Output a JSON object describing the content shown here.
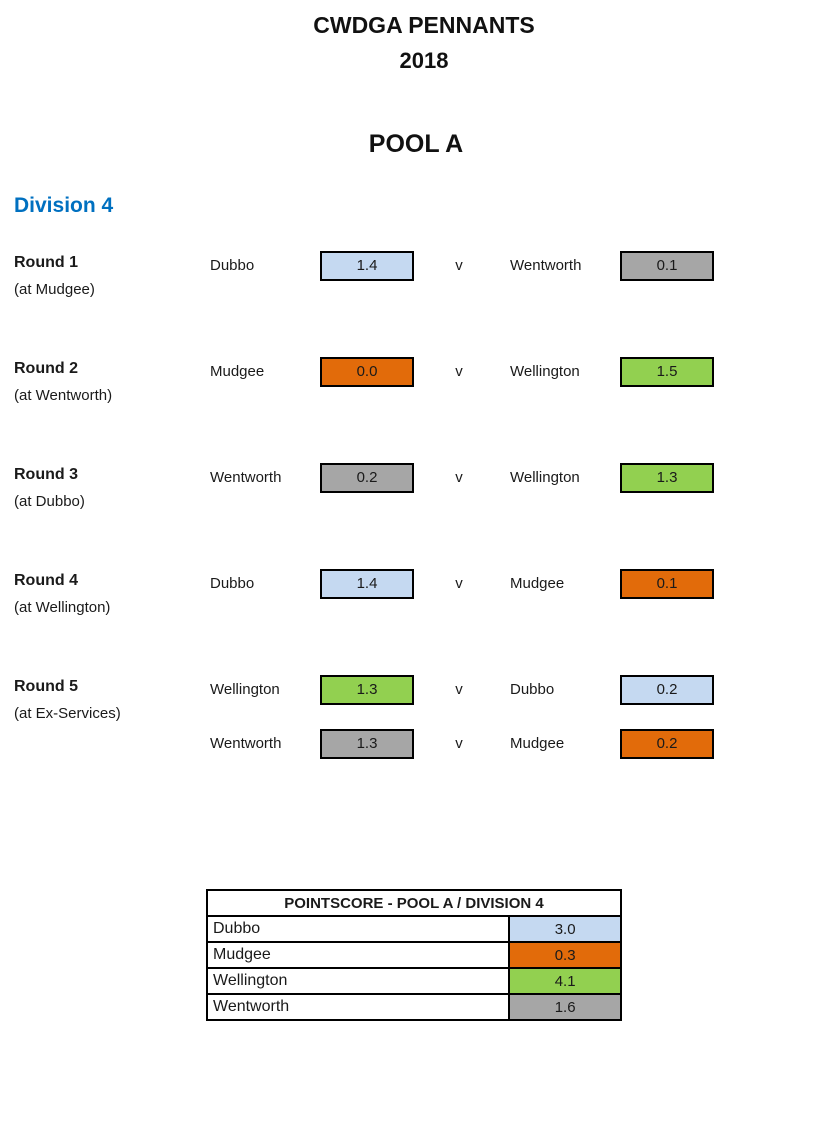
{
  "header": {
    "title_line1": "CWDGA PENNANTS",
    "title_line2": "2018",
    "pool_title": "POOL A"
  },
  "division": {
    "title": "Division 4"
  },
  "versus_label": "v",
  "colors": {
    "heading_blue": "#0070c0",
    "box_border": "#000000"
  },
  "team_colors": {
    "Dubbo": "#c5d9f1",
    "Mudgee": "#e26b0a",
    "Wellington": "#92d050",
    "Wentworth": "#a6a6a6"
  },
  "rounds": [
    {
      "label": "Round 1",
      "venue": "(at Mudgee)",
      "matches": [
        {
          "home": "Dubbo",
          "home_score": "1.4",
          "away": "Wentworth",
          "away_score": "0.1"
        }
      ]
    },
    {
      "label": "Round 2",
      "venue": "(at Wentworth)",
      "matches": [
        {
          "home": "Mudgee",
          "home_score": "0.0",
          "away": "Wellington",
          "away_score": "1.5"
        }
      ]
    },
    {
      "label": "Round 3",
      "venue": "(at Dubbo)",
      "matches": [
        {
          "home": "Wentworth",
          "home_score": "0.2",
          "away": "Wellington",
          "away_score": "1.3"
        }
      ]
    },
    {
      "label": "Round 4",
      "venue": "(at Wellington)",
      "matches": [
        {
          "home": "Dubbo",
          "home_score": "1.4",
          "away": "Mudgee",
          "away_score": "0.1"
        }
      ]
    },
    {
      "label": "Round 5",
      "venue": "(at Ex-Services)",
      "matches": [
        {
          "home": "Wellington",
          "home_score": "1.3",
          "away": "Dubbo",
          "away_score": "0.2"
        },
        {
          "home": "Wentworth",
          "home_score": "1.3",
          "away": "Mudgee",
          "away_score": "0.2"
        }
      ]
    }
  ],
  "pointscore": {
    "title": "POINTSCORE - POOL A / DIVISION 4",
    "rows": [
      {
        "team": "Dubbo",
        "score": "3.0"
      },
      {
        "team": "Mudgee",
        "score": "0.3"
      },
      {
        "team": "Wellington",
        "score": "4.1"
      },
      {
        "team": "Wentworth",
        "score": "1.6"
      }
    ]
  }
}
